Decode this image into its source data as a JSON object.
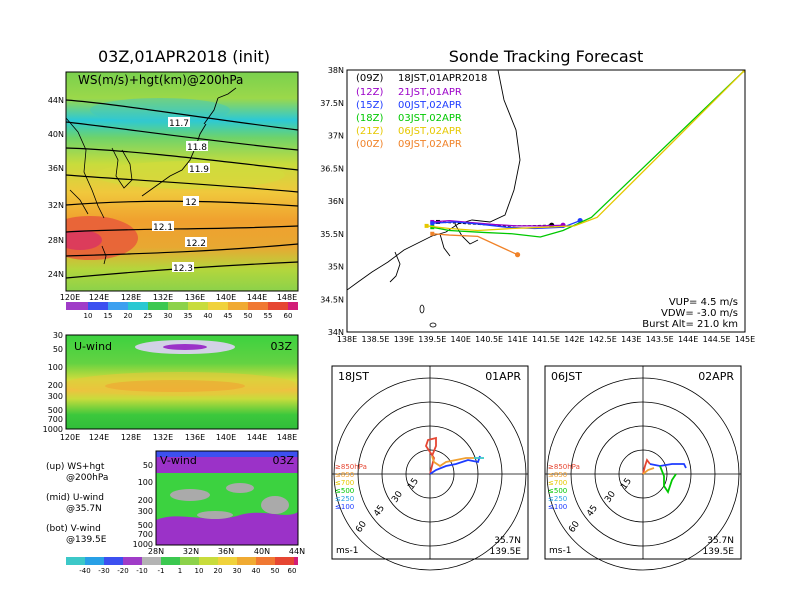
{
  "main_title": "03Z,01APR2018 (init)",
  "map_panel": {
    "label": "WS(m/s)+hgt(km)@200hPa",
    "lat_labels": [
      "44N",
      "40N",
      "36N",
      "32N",
      "28N",
      "24N"
    ],
    "lon_labels": [
      "120E",
      "124E",
      "128E",
      "132E",
      "136E",
      "140E",
      "144E",
      "148E"
    ],
    "contour_labels": [
      "11.7",
      "11.8",
      "11.9",
      "12",
      "12.1",
      "12.2",
      "12.3"
    ],
    "colorbar_labels": [
      "10",
      "15",
      "20",
      "25",
      "30",
      "35",
      "40",
      "45",
      "50",
      "55",
      "60"
    ]
  },
  "uwind_panel": {
    "label": "U-wind",
    "time": "03Z",
    "pressure_labels": [
      "30",
      "50",
      "100",
      "200",
      "300",
      "500",
      "700",
      "1000"
    ],
    "lon_labels": [
      "120E",
      "124E",
      "128E",
      "132E",
      "136E",
      "140E",
      "144E",
      "148E"
    ]
  },
  "vwind_panel": {
    "label": "V-wind",
    "time": "03Z",
    "pressure_labels": [
      "50",
      "100",
      "200",
      "300",
      "500",
      "700",
      "1000"
    ],
    "lat_labels": [
      "28N",
      "32N",
      "36N",
      "40N",
      "44N"
    ],
    "colorbar_labels": [
      "-40",
      "-30",
      "-20",
      "-10",
      "-1",
      "1",
      "10",
      "20",
      "30",
      "40",
      "50",
      "60"
    ]
  },
  "legend_notes": {
    "up_1": "(up) WS+hgt",
    "up_2": "@200hPa",
    "mid_1": "(mid) U-wind",
    "mid_2": "@35.7N",
    "bot_1": "(bot) V-wind",
    "bot_2": "@139.5E"
  },
  "tracking": {
    "title": "Sonde Tracking Forecast",
    "lat_labels": [
      "38N",
      "37.5N",
      "37N",
      "36.5N",
      "36N",
      "35.5N",
      "35N",
      "34.5N",
      "34N"
    ],
    "lon_labels": [
      "138E",
      "138.5E",
      "139E",
      "139.5E",
      "140E",
      "140.5E",
      "141E",
      "141.5E",
      "142E",
      "142.5E",
      "143E",
      "143.5E",
      "144E",
      "144.5E",
      "145E"
    ],
    "legend": [
      {
        "z": "(09Z)",
        "time": "18JST,01APR2018",
        "color": "#000000"
      },
      {
        "z": "(12Z)",
        "time": "21JST,01APR",
        "color": "#9b00c8"
      },
      {
        "z": "(15Z)",
        "time": "00JST,02APR",
        "color": "#1e3cff"
      },
      {
        "z": "(18Z)",
        "time": "03JST,02APR",
        "color": "#00c800"
      },
      {
        "z": "(21Z)",
        "time": "06JST,02APR",
        "color": "#e6c800"
      },
      {
        "z": "(00Z)",
        "time": "09JST,02APR",
        "color": "#f08228"
      }
    ],
    "vup": "VUP=  4.5 m/s",
    "vdw": "VDW= -3.0 m/s",
    "burst": "Burst Alt= 21.0 km"
  },
  "hodo_left": {
    "time": "18JST",
    "date": "01APR",
    "rings": [
      "15",
      "30",
      "45",
      "60"
    ],
    "levels": [
      "≥850hPa",
      "≤850",
      "≤700",
      "≤500",
      "≤250",
      "≤100"
    ],
    "loc_1": "35.7N",
    "loc_2": "139.5E",
    "units": "ms-1"
  },
  "hodo_right": {
    "time": "06JST",
    "date": "02APR",
    "rings": [
      "15",
      "30",
      "45",
      "60"
    ],
    "levels": [
      "≥850hPa",
      "≤850",
      "≤700",
      "≤500",
      "≤250",
      "≤100"
    ],
    "loc_1": "35.7N",
    "loc_2": "139.5E",
    "units": "ms-1"
  },
  "chart_data": [
    {
      "type": "heatmap",
      "title": "WS(m/s)+hgt(km)@200hPa",
      "x_ticks": [
        "120E",
        "124E",
        "128E",
        "132E",
        "136E",
        "140E",
        "144E",
        "148E"
      ],
      "y_ticks": [
        "24N",
        "28N",
        "32N",
        "36N",
        "40N",
        "44N"
      ],
      "contours_km": [
        11.7,
        11.8,
        11.9,
        12,
        12.1,
        12.2,
        12.3
      ],
      "colorbar_ms": [
        10,
        15,
        20,
        25,
        30,
        35,
        40,
        45,
        50,
        55,
        60
      ]
    },
    {
      "type": "line",
      "title": "Sonde Tracking Forecast",
      "xlim": [
        138,
        145
      ],
      "ylim": [
        34,
        38
      ],
      "series": [
        {
          "name": "(09Z)",
          "color": "#000000",
          "x": [
            139.6,
            140.0,
            140.4,
            140.8,
            141.2,
            141.6
          ],
          "y": [
            35.68,
            35.66,
            35.64,
            35.62,
            35.62,
            35.63
          ]
        },
        {
          "name": "(12Z)",
          "color": "#9b00c8",
          "x": [
            139.5,
            139.8,
            140.2,
            140.6,
            141.0,
            141.4,
            141.8
          ],
          "y": [
            35.68,
            35.7,
            35.67,
            35.64,
            35.62,
            35.62,
            35.63
          ]
        },
        {
          "name": "(15Z)",
          "color": "#1e3cff",
          "x": [
            139.5,
            139.9,
            140.3,
            140.8,
            141.3,
            141.8,
            142.1
          ],
          "y": [
            35.66,
            35.68,
            35.65,
            35.6,
            35.58,
            35.6,
            35.7
          ]
        },
        {
          "name": "(18Z)",
          "color": "#00c800",
          "x": [
            139.5,
            139.8,
            140.4,
            140.9,
            141.4,
            141.8,
            142.3,
            145.0
          ],
          "y": [
            35.6,
            35.55,
            35.52,
            35.5,
            35.45,
            35.55,
            35.75,
            38.0
          ]
        },
        {
          "name": "(21Z)",
          "color": "#e6c800",
          "x": [
            139.4,
            139.8,
            140.3,
            140.9,
            141.5,
            142.0,
            142.4,
            145.0
          ],
          "y": [
            35.62,
            35.58,
            35.55,
            35.58,
            35.6,
            35.62,
            35.75,
            38.0
          ]
        },
        {
          "name": "(00Z)",
          "color": "#f08228",
          "x": [
            139.5,
            139.8,
            140.3,
            140.7,
            141.0
          ],
          "y": [
            35.5,
            35.48,
            35.46,
            35.3,
            35.18
          ]
        }
      ]
    }
  ]
}
